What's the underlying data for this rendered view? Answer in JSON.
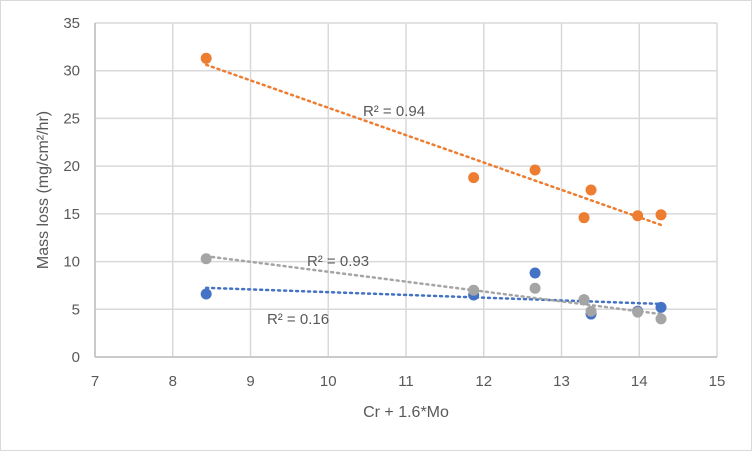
{
  "chart_data": {
    "type": "scatter",
    "title": "",
    "xlabel": "Cr + 1.6*Mo",
    "ylabel": "Mass loss (mg/cm²/hr)",
    "xlim": [
      7,
      15
    ],
    "ylim": [
      0,
      35
    ],
    "xticks": [
      7,
      8,
      9,
      10,
      11,
      12,
      13,
      14,
      15
    ],
    "yticks": [
      0,
      5,
      10,
      15,
      20,
      25,
      30,
      35
    ],
    "grid": true,
    "legend": "none",
    "series": [
      {
        "name": "orange",
        "color": "#ED7D31",
        "x": [
          8.43,
          11.87,
          12.66,
          13.38,
          13.29,
          13.98,
          14.28
        ],
        "y": [
          31.3,
          18.8,
          19.6,
          17.5,
          14.6,
          14.8,
          14.9
        ],
        "trendline": "linear",
        "r2_label": "R² = 0.94"
      },
      {
        "name": "blue",
        "color": "#4472C4",
        "x": [
          8.43,
          11.87,
          12.66,
          13.29,
          13.38,
          13.98,
          14.28
        ],
        "y": [
          6.6,
          6.5,
          8.8,
          6.0,
          4.5,
          4.8,
          5.2
        ],
        "trendline": "linear",
        "r2_label": "R² = 0.16"
      },
      {
        "name": "gray",
        "color": "#A5A5A5",
        "x": [
          8.43,
          11.87,
          12.66,
          13.29,
          13.38,
          13.98,
          14.28
        ],
        "y": [
          10.3,
          7.0,
          7.2,
          6.0,
          4.8,
          4.7,
          4.0
        ],
        "trendline": "linear",
        "r2_label": "R² = 0.93"
      }
    ]
  }
}
